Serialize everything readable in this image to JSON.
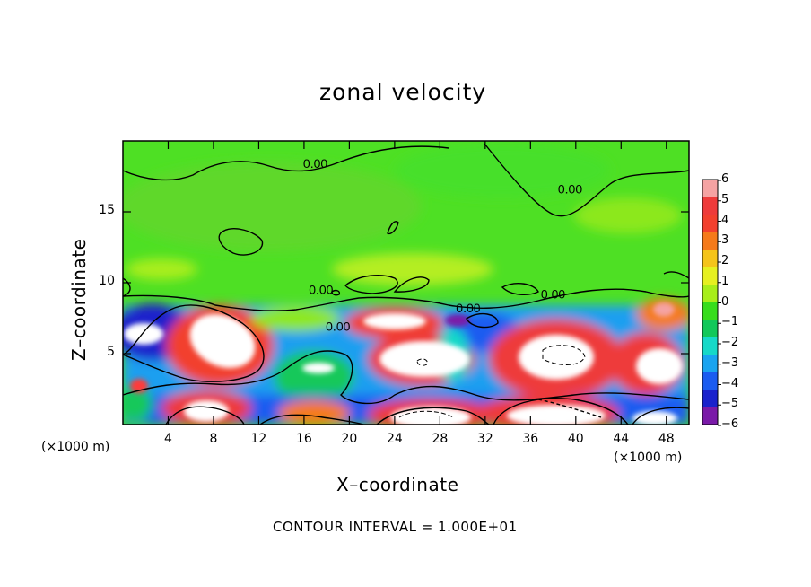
{
  "chart_data": {
    "type": "heatmap",
    "title": "zonal velocity",
    "xlabel": "X–coordinate",
    "ylabel": "Z–coordinate",
    "x_unit_label": "(×1000 m)",
    "z_unit_label": "(×1000 m)",
    "footer": "CONTOUR INTERVAL = 1.000E+01",
    "xlim": [
      0,
      50
    ],
    "ylim": [
      0,
      20
    ],
    "x_ticks": [
      4,
      8,
      12,
      16,
      20,
      24,
      28,
      32,
      36,
      40,
      44,
      48
    ],
    "y_ticks": [
      5,
      10,
      15
    ],
    "colorbar": {
      "ticks": [
        6,
        5,
        4,
        3,
        2,
        1,
        0,
        -1,
        -2,
        -3,
        -4,
        -5,
        -6
      ],
      "colors": [
        "#f5a3a3",
        "#ee3b3b",
        "#f2402e",
        "#f57a1a",
        "#f5c41a",
        "#e6f020",
        "#a8ee1a",
        "#37dd1c",
        "#12c85a",
        "#16d9c8",
        "#19a4f0",
        "#1a5cf0",
        "#1a22cc",
        "#7a1aa8"
      ]
    },
    "contour_labels": [
      {
        "text": "0.00",
        "x": 17,
        "z": 18.1
      },
      {
        "text": "0.00",
        "x": 39.5,
        "z": 16.3
      },
      {
        "text": "0.00",
        "x": 17.5,
        "z": 9.2
      },
      {
        "text": "0.00",
        "x": 38,
        "z": 8.9
      },
      {
        "text": "0.00",
        "x": 30.5,
        "z": 7.9
      },
      {
        "text": "0.00",
        "x": 19,
        "z": 6.6
      }
    ]
  }
}
